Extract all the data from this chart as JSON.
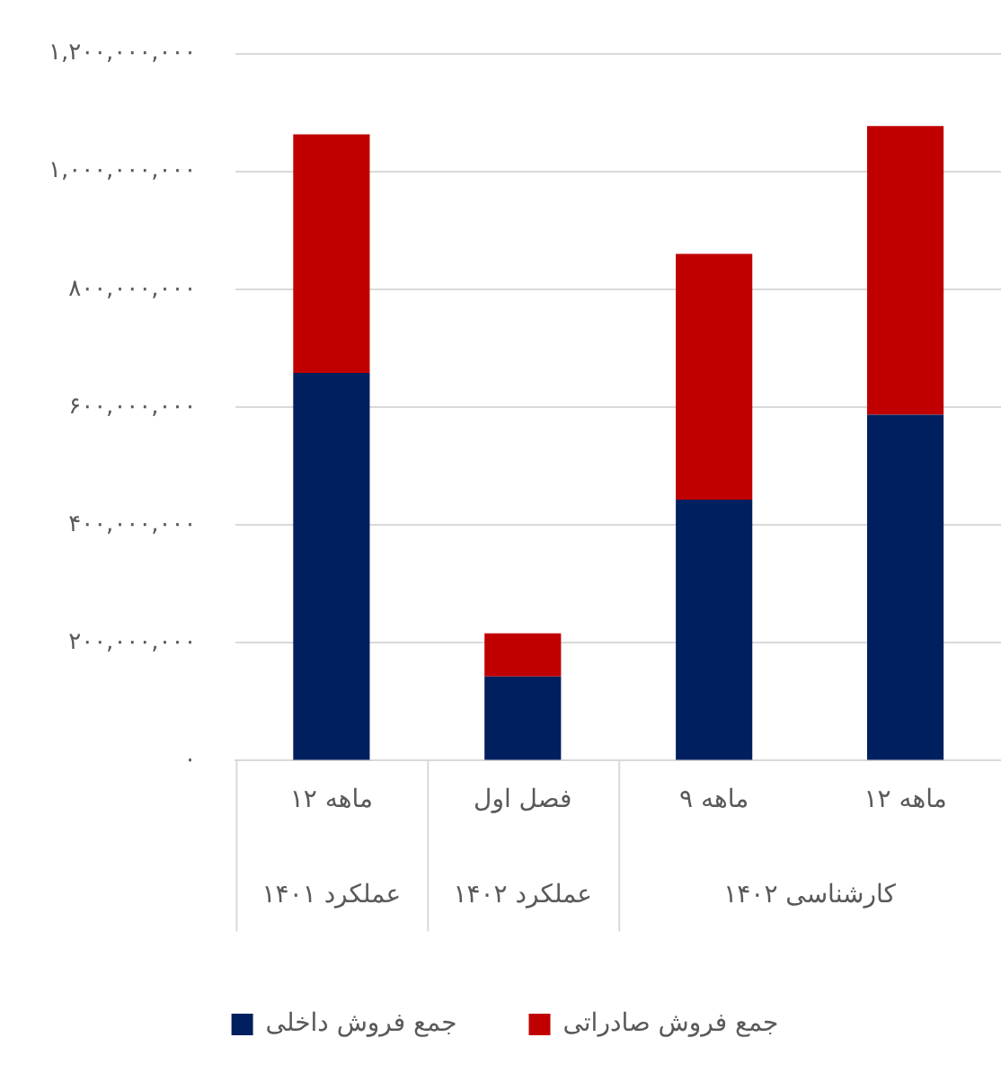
{
  "chart_data": {
    "type": "bar",
    "stacked": true,
    "categories": [
      "۱۲ ماهه",
      "فصل اول",
      "۹ ماهه",
      "۱۲ ماهه"
    ],
    "series": [
      {
        "name": "جمع فروش داخلی",
        "color": "#001f5f",
        "values": [
          658000000,
          143000000,
          443000000,
          587000000
        ]
      },
      {
        "name": "جمع فروش صادراتی",
        "color": "#c00000",
        "values": [
          405000000,
          73000000,
          417000000,
          490000000
        ]
      }
    ],
    "annotations": [
      "عملکرد ۱۴۰۱",
      "عملکرد ۱۴۰۲",
      "کارشناسی ۱۴۰۲"
    ],
    "ylim": [
      0,
      1200000000
    ],
    "yticks": [
      {
        "value": 0,
        "label": "۰"
      },
      {
        "value": 200000000,
        "label": "۲۰۰,۰۰۰,۰۰۰"
      },
      {
        "value": 400000000,
        "label": "۴۰۰,۰۰۰,۰۰۰"
      },
      {
        "value": 600000000,
        "label": "۶۰۰,۰۰۰,۰۰۰"
      },
      {
        "value": 800000000,
        "label": "۸۰۰,۰۰۰,۰۰۰"
      },
      {
        "value": 1000000000,
        "label": "۱,۰۰۰,۰۰۰,۰۰۰"
      },
      {
        "value": 1200000000,
        "label": "۱,۲۰۰,۰۰۰,۰۰۰"
      }
    ],
    "grid": "y",
    "legend": "bottom"
  }
}
